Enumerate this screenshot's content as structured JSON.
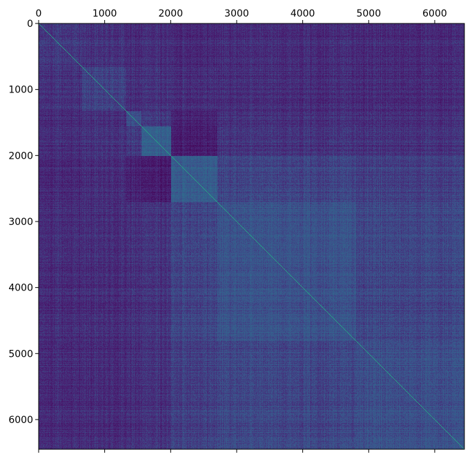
{
  "chart_data": {
    "type": "heatmap",
    "title": "",
    "xlabel": "",
    "ylabel": "",
    "matrix_size": 6450,
    "xlim": [
      0,
      6450
    ],
    "ylim": [
      6450,
      0
    ],
    "x_axis_position": "top",
    "x_ticks": [
      0,
      1000,
      2000,
      3000,
      4000,
      5000,
      6000
    ],
    "y_ticks": [
      0,
      1000,
      2000,
      3000,
      4000,
      5000,
      6000
    ],
    "x_tick_labels": [
      "0",
      "1000",
      "2000",
      "3000",
      "4000",
      "5000",
      "6000"
    ],
    "y_tick_labels": [
      "0",
      "1000",
      "2000",
      "3000",
      "4000",
      "5000",
      "6000"
    ],
    "colormap": "viridis",
    "diagonal_value": 1.0,
    "grid": false,
    "legend": "none",
    "block_boundaries": [
      0,
      650,
      1320,
      1550,
      2000,
      2700,
      4800,
      6450
    ],
    "block_levels": [
      [
        0.18,
        0.16,
        0.14,
        0.15,
        0.14,
        0.15,
        0.14
      ],
      [
        0.16,
        0.2,
        0.15,
        0.16,
        0.15,
        0.15,
        0.14
      ],
      [
        0.14,
        0.15,
        0.24,
        0.18,
        0.12,
        0.16,
        0.15
      ],
      [
        0.15,
        0.16,
        0.18,
        0.3,
        0.1,
        0.17,
        0.16
      ],
      [
        0.14,
        0.15,
        0.12,
        0.1,
        0.3,
        0.22,
        0.2
      ],
      [
        0.15,
        0.15,
        0.16,
        0.17,
        0.22,
        0.26,
        0.22
      ],
      [
        0.14,
        0.14,
        0.15,
        0.16,
        0.2,
        0.22,
        0.24
      ]
    ]
  }
}
